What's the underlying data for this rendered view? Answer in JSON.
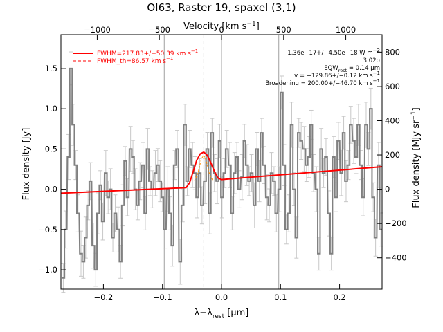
{
  "chart_data": {
    "type": "line",
    "title": "OI63, Raster 19, spaxel (3,1)",
    "xlabel": "λ−λ",
    "xlabel_sub": "rest",
    "xlabel_unit": " [μm]",
    "ylabel": "Flux density [Jy]",
    "top_label": "Velocity [km s",
    "top_label_sup": "−1",
    "top_label_end": "]",
    "right_label": "Flux density [MJy sr",
    "right_label_sup": "−1",
    "right_label_end": "]",
    "xlim": [
      -0.272,
      0.272
    ],
    "ylim": [
      -1.24,
      1.92
    ],
    "x_ticks": [
      -0.2,
      -0.1,
      0.0,
      0.1,
      0.2
    ],
    "x_tick_labels": [
      "−0.2",
      "−0.1",
      "0.0",
      "0.1",
      "0.2"
    ],
    "y_ticks": [
      -1.0,
      -0.5,
      0.0,
      0.5,
      1.0,
      1.5
    ],
    "y_tick_labels": [
      "−1.0",
      "−0.5",
      "0.0",
      "0.5",
      "1.0",
      "1.5"
    ],
    "top_ticks": [
      -1000,
      -500,
      0,
      500,
      1000
    ],
    "top_tick_labels": [
      "−1000",
      "−500",
      "0",
      "500",
      "1000"
    ],
    "right_ticks": [
      -400,
      -200,
      0,
      200,
      400,
      600,
      800
    ],
    "right_tick_labels": [
      "−400",
      "−200",
      "0",
      "200",
      "400",
      "600",
      "800"
    ],
    "velocity_per_micron": 4750,
    "surface_per_jy": 470,
    "vertical_lines": [
      -0.097,
      0.0,
      0.097
    ],
    "dashed_line": -0.03,
    "legend": [
      {
        "label": "FWHM=217.83+/−50.39 km s",
        "sup": "−1",
        "style": "solid"
      },
      {
        "label": "FWHM_th=86.57 km s",
        "sup": "−1",
        "style": "dashed"
      }
    ],
    "annotations": [
      {
        "text": "1.36e−17+/−4.50e−18 W m",
        "sup": "−2"
      },
      {
        "text": "3.02σ",
        "sup": ""
      },
      {
        "text": "EQW",
        "sub": "rest",
        "rest": " = 0.14 μm"
      },
      {
        "text": "v = −129.86+/−0.12 km s",
        "sup": "−1"
      },
      {
        "text": "Broadening = 200.00+/−46.70 km s",
        "sup": "−1"
      }
    ],
    "colors": {
      "data": "#808080",
      "errorbar": "#c8c8c8",
      "fit": "#ff0000",
      "components": "#ff8c00",
      "lines": "#a0a0a0",
      "axis": "#000000"
    },
    "series": [
      {
        "x": [
          -0.268,
          -0.264,
          -0.259,
          -0.255,
          -0.251,
          -0.247,
          -0.243,
          -0.238,
          -0.234,
          -0.23,
          -0.226,
          -0.222,
          -0.217,
          -0.213,
          -0.209,
          -0.205,
          -0.201,
          -0.196,
          -0.192,
          -0.188,
          -0.184,
          -0.18,
          -0.175,
          -0.171,
          -0.167,
          -0.163,
          -0.159,
          -0.154,
          -0.15,
          -0.146,
          -0.142,
          -0.138,
          -0.133,
          -0.129,
          -0.125,
          -0.121,
          -0.117,
          -0.112,
          -0.108,
          -0.104,
          -0.1,
          -0.096,
          -0.091,
          -0.087,
          -0.083,
          -0.079,
          -0.075,
          -0.07,
          -0.066,
          -0.062,
          -0.058,
          -0.054,
          -0.049,
          -0.045,
          -0.041,
          -0.037,
          -0.033,
          -0.028,
          -0.024,
          -0.02,
          -0.016,
          -0.012,
          -0.007,
          -0.003,
          0.001,
          0.005,
          0.009,
          0.014,
          0.018,
          0.022,
          0.026,
          0.03,
          0.035,
          0.039,
          0.043,
          0.047,
          0.051,
          0.056,
          0.06,
          0.064,
          0.068,
          0.072,
          0.077,
          0.081,
          0.085,
          0.089,
          0.093,
          0.098,
          0.102,
          0.106,
          0.11,
          0.114,
          0.119,
          0.123,
          0.127,
          0.131,
          0.135,
          0.14,
          0.144,
          0.148,
          0.152,
          0.156,
          0.161,
          0.165,
          0.169,
          0.173,
          0.177,
          0.182,
          0.186,
          0.19,
          0.194,
          0.198,
          0.203,
          0.207,
          0.211,
          0.215,
          0.219,
          0.224,
          0.228,
          0.232,
          0.236,
          0.24,
          0.245,
          0.249,
          0.253,
          0.257,
          0.261,
          0.266,
          0.27
        ],
        "y": [
          -1.1,
          -0.5,
          0.4,
          1.5,
          0.8,
          0.3,
          -0.3,
          -0.8,
          -0.9,
          -0.6,
          -0.2,
          0.1,
          -0.7,
          -1.0,
          -0.3,
          0.05,
          -0.4,
          0.2,
          -0.1,
          0.0,
          -0.6,
          -0.3,
          -0.5,
          -0.9,
          -0.2,
          0.35,
          -0.1,
          0.5,
          0.4,
          0.0,
          -0.2,
          0.1,
          0.3,
          -0.3,
          0.5,
          0.1,
          0.0,
          0.2,
          0.3,
          0.1,
          -0.1,
          -0.5,
          0.0,
          -0.3,
          -0.7,
          0.3,
          0.5,
          -0.9,
          -0.2,
          0.8,
          0.1,
          0.5,
          0.3,
          0.2,
          -0.1,
          0.2,
          -0.2,
          0.1,
          0.5,
          -0.3,
          0.7,
          0.2,
          0.1,
          0.6,
          -0.1,
          0.2,
          0.5,
          0.3,
          -0.3,
          0.2,
          0.4,
          0.0,
          0.15,
          0.6,
          0.3,
          0.1,
          0.2,
          -0.2,
          0.5,
          0.1,
          0.7,
          0.3,
          -0.1,
          -0.2,
          0.2,
          0.1,
          -0.3,
          0.0,
          1.2,
          0.3,
          -0.5,
          -0.3,
          0.8,
          0.0,
          -0.6,
          0.7,
          0.6,
          0.5,
          0.3,
          0.4,
          0.8,
          0.2,
          0.0,
          -0.8,
          0.5,
          0.2,
          0.4,
          -0.3,
          -0.8,
          0.4,
          -0.1,
          0.6,
          0.2,
          0.7,
          0.1,
          0.3,
          0.8,
          0.6,
          0.4,
          0.8,
          0.3,
          -0.1,
          0.8,
          0.5,
          1.0,
          -0.1,
          -0.6,
          0.3,
          -0.5
        ]
      },
      {
        "name": "FWHM=217.83+/−50.39 km s−1",
        "x": [
          -0.272,
          -0.06,
          -0.054,
          -0.048,
          -0.042,
          -0.036,
          -0.03,
          -0.024,
          -0.018,
          -0.012,
          -0.006,
          0.0,
          0.272
        ],
        "y": [
          -0.05,
          0.02,
          0.08,
          0.22,
          0.36,
          0.44,
          0.46,
          0.42,
          0.33,
          0.22,
          0.14,
          0.12,
          0.28
        ]
      },
      {
        "name": "FWHM_th=86.57 km s−1",
        "x": [
          -0.046,
          -0.04,
          -0.034,
          -0.03,
          -0.026,
          -0.02,
          -0.014
        ],
        "y": [
          0.1,
          0.2,
          0.38,
          0.42,
          0.36,
          0.18,
          0.1
        ]
      }
    ]
  }
}
